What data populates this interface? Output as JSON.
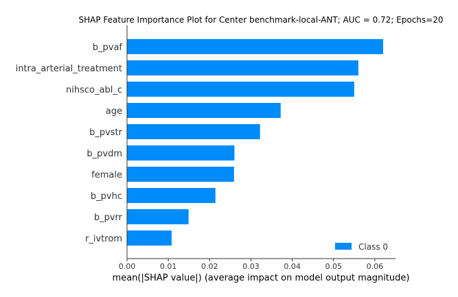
{
  "chart_data": {
    "type": "bar",
    "orientation": "horizontal",
    "title": "SHAP Feature Importance Plot for Center benchmark-local-ANT; AUC = 0.72; Epochs=20",
    "xlabel": "mean(|SHAP value|) (average impact on model output magnitude)",
    "ylabel": "",
    "categories": [
      "b_pvaf",
      "intra_arterial_treatment",
      "nihsco_abl_c",
      "age",
      "b_pvstr",
      "b_pvdm",
      "female",
      "b_pvhc",
      "b_pvrr",
      "r_ivtrom"
    ],
    "series": [
      {
        "name": "Class 0",
        "color": "#008bfb",
        "values": [
          0.062,
          0.056,
          0.055,
          0.0372,
          0.0322,
          0.026,
          0.0259,
          0.0214,
          0.0149,
          0.0108
        ]
      }
    ],
    "xlim": [
      0,
      0.065
    ],
    "xticks": [
      "0.00",
      "0.01",
      "0.02",
      "0.03",
      "0.04",
      "0.05",
      "0.06"
    ],
    "xtick_values": [
      0,
      0.01,
      0.02,
      0.03,
      0.04,
      0.05,
      0.06
    ],
    "grid": false,
    "legend_position": "lower-right",
    "legend_label": "Class 0"
  }
}
